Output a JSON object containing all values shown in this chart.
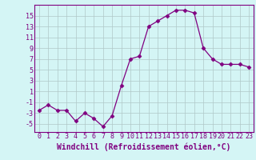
{
  "x": [
    0,
    1,
    2,
    3,
    4,
    5,
    6,
    7,
    8,
    9,
    10,
    11,
    12,
    13,
    14,
    15,
    16,
    17,
    18,
    19,
    20,
    21,
    22,
    23
  ],
  "y": [
    -2.5,
    -1.5,
    -2.5,
    -2.5,
    -4.5,
    -3,
    -4,
    -5.5,
    -3.5,
    2,
    7,
    7.5,
    13,
    14,
    15,
    16,
    16,
    15.5,
    9,
    7,
    6,
    6,
    6,
    5.5
  ],
  "line_color": "#800080",
  "marker": "D",
  "marker_size": 2.5,
  "bg_color": "#d4f5f5",
  "grid_color": "#b0c8c8",
  "xlabel": "Windchill (Refroidissement éolien,°C)",
  "xlabel_color": "#800080",
  "xlabel_fontsize": 7,
  "ylabel_ticks": [
    -5,
    -3,
    -1,
    1,
    3,
    5,
    7,
    9,
    11,
    13,
    15
  ],
  "ylim": [
    -6.5,
    17
  ],
  "xlim": [
    -0.5,
    23.5
  ],
  "tick_fontsize": 6,
  "spine_color": "#800080"
}
